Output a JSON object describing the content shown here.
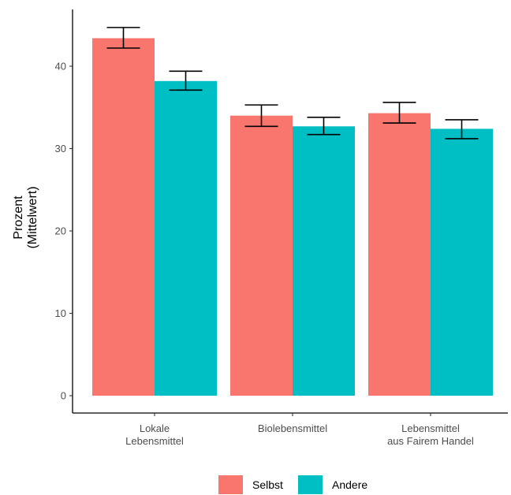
{
  "chart_data": {
    "type": "bar",
    "title": "",
    "xlabel": "",
    "ylabel": "Prozent\n(Mittelwert)",
    "ylim": [
      0,
      45
    ],
    "yticks": [
      0,
      10,
      20,
      30,
      40
    ],
    "categories": [
      "Lokale\nLebensmittel",
      "Biolebensmittel",
      "Lebensmittel\naus Fairem Handel"
    ],
    "series": [
      {
        "name": "Selbst",
        "color": "#F8766D",
        "values": [
          43.4,
          34.0,
          34.3
        ],
        "error_low": [
          42.2,
          32.7,
          33.1
        ],
        "error_high": [
          44.7,
          35.3,
          35.6
        ]
      },
      {
        "name": "Andere",
        "color": "#00BFC4",
        "values": [
          38.2,
          32.7,
          32.4
        ],
        "error_low": [
          37.1,
          31.7,
          31.2
        ],
        "error_high": [
          39.4,
          33.8,
          33.5
        ]
      }
    ],
    "grid": false,
    "legend": "bottom"
  }
}
